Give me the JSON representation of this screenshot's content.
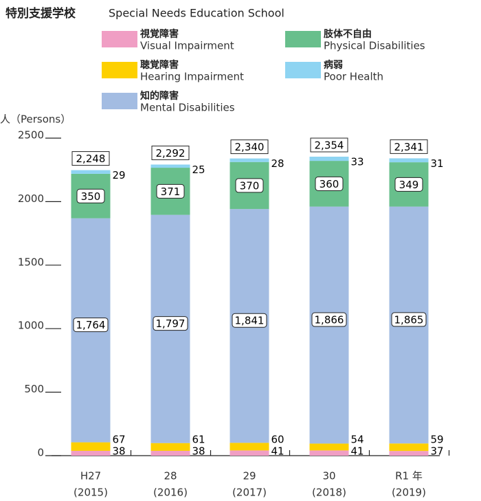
{
  "chart_data": {
    "type": "stacked_bar",
    "title": "特別支援学校",
    "subtitle": "Special Needs Education School",
    "y_label": "人（Persons）",
    "categories": [
      "H27",
      "28",
      "29",
      "30",
      "R1 年"
    ],
    "category_years": [
      "(2015)",
      "(2016)",
      "(2017)",
      "(2018)",
      "(2019)"
    ],
    "series": [
      {
        "name": "視覚障害",
        "name_en": "Visual Impairment",
        "color": "#f09ec4",
        "values": [
          38,
          38,
          41,
          41,
          37
        ]
      },
      {
        "name": "聴覚障害",
        "name_en": "Hearing Impairment",
        "color": "#fdd000",
        "values": [
          67,
          61,
          60,
          54,
          59
        ]
      },
      {
        "name": "知的障害",
        "name_en": "Mental Disabilities",
        "color": "#a3bce2",
        "values": [
          1764,
          1797,
          1841,
          1866,
          1865
        ],
        "value_labels": [
          "1,764",
          "1,797",
          "1,841",
          "1,866",
          "1,865"
        ]
      },
      {
        "name": "肢体不自由",
        "name_en": "Physical Disabilities",
        "color": "#68bf8c",
        "values": [
          350,
          371,
          370,
          360,
          349
        ]
      },
      {
        "name": "病弱",
        "name_en": "Poor Health",
        "color": "#8ed4f2",
        "values": [
          29,
          25,
          28,
          33,
          31
        ]
      }
    ],
    "totals": [
      2248,
      2292,
      2340,
      2354,
      2341
    ],
    "total_labels": [
      "2,248",
      "2,292",
      "2,340",
      "2,354",
      "2,341"
    ],
    "ylim": [
      0,
      2500
    ],
    "yticks": [
      0,
      500,
      1000,
      1500,
      2000,
      2500
    ]
  }
}
